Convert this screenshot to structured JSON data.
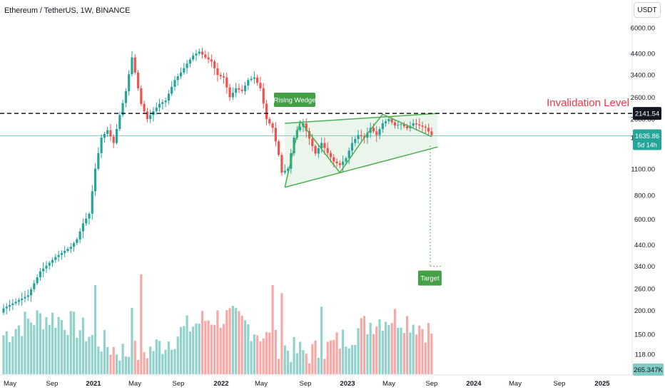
{
  "header": {
    "title": "Ethereum / TetherUS, 1W, BINANCE",
    "currency_button": "USDT"
  },
  "colors": {
    "up": "#26a69a",
    "down": "#ef5350",
    "wedge_line": "#4caf50",
    "wedge_fill": "#e8f5e9",
    "invalidation_text": "#f23645",
    "last_price_line": "#26a69a"
  },
  "chart_data": {
    "type": "candlestick",
    "title": "Ethereum / TetherUS, 1W, BINANCE",
    "y_scale": "log",
    "ylim": [
      105,
      8000
    ],
    "y_ticks": [
      118,
      150,
      200,
      260,
      340,
      440,
      600,
      800,
      1100,
      1600,
      2000,
      2600,
      3400,
      4400,
      6000
    ],
    "y_tick_labels": [
      "118.00",
      "150.00",
      "200.00",
      "260.00",
      "340.00",
      "440.00",
      "600.00",
      "800.00",
      "1100.00",
      "1600.00",
      "2000.00",
      "2600.00",
      "3400.00",
      "4400.00",
      "6000.00"
    ],
    "x_tick_labels": [
      "May",
      "Sep",
      "2021",
      "May",
      "Sep",
      "2022",
      "May",
      "Sep",
      "2023",
      "May",
      "Sep",
      "2024",
      "May",
      "Sep",
      "2025"
    ],
    "bold_x_tick_labels": [
      "2021",
      "2022",
      "2023",
      "2024",
      "2025"
    ],
    "price_anchors": [
      [
        0,
        205
      ],
      [
        8,
        240
      ],
      [
        12,
        320
      ],
      [
        17,
        380
      ],
      [
        22,
        430
      ],
      [
        24,
        470
      ],
      [
        26,
        570
      ],
      [
        28,
        640
      ],
      [
        30,
        1100
      ],
      [
        32,
        1600
      ],
      [
        34,
        1750
      ],
      [
        36,
        1500
      ],
      [
        38,
        2100
      ],
      [
        40,
        2800
      ],
      [
        42,
        4200
      ],
      [
        43,
        3500
      ],
      [
        45,
        2400
      ],
      [
        47,
        2000
      ],
      [
        49,
        2200
      ],
      [
        51,
        2400
      ],
      [
        53,
        2500
      ],
      [
        56,
        3200
      ],
      [
        58,
        3500
      ],
      [
        60,
        3900
      ],
      [
        62,
        4300
      ],
      [
        64,
        4500
      ],
      [
        66,
        4200
      ],
      [
        68,
        4000
      ],
      [
        70,
        3400
      ],
      [
        72,
        3300
      ],
      [
        74,
        2600
      ],
      [
        76,
        2900
      ],
      [
        78,
        2800
      ],
      [
        80,
        3200
      ],
      [
        82,
        3300
      ],
      [
        84,
        2900
      ],
      [
        86,
        2000
      ],
      [
        88,
        1800
      ],
      [
        90,
        1300
      ],
      [
        91,
        1050
      ],
      [
        93,
        1100
      ],
      [
        95,
        1600
      ],
      [
        96,
        1750
      ],
      [
        98,
        1900
      ],
      [
        100,
        1580
      ],
      [
        102,
        1320
      ],
      [
        104,
        1500
      ],
      [
        106,
        1330
      ],
      [
        108,
        1200
      ],
      [
        110,
        1150
      ],
      [
        112,
        1250
      ],
      [
        114,
        1500
      ],
      [
        116,
        1650
      ],
      [
        118,
        1600
      ],
      [
        120,
        1800
      ],
      [
        122,
        1650
      ],
      [
        124,
        1900
      ],
      [
        126,
        2000
      ],
      [
        128,
        1850
      ],
      [
        130,
        1880
      ],
      [
        132,
        1790
      ],
      [
        134,
        1900
      ],
      [
        136,
        1850
      ],
      [
        138,
        1800
      ],
      [
        140,
        1650
      ]
    ],
    "volume_bars": 141,
    "wedge_label": "Rising Wedge",
    "wedge_lines": {
      "upper": {
        "from": [
          92,
          1900
        ],
        "to": [
          142,
          2141.54
        ]
      },
      "lower": {
        "from": [
          92,
          880
        ],
        "to": [
          142,
          1430
        ]
      }
    },
    "zigzag": [
      [
        92,
        880
      ],
      [
        97,
        1950
      ],
      [
        105,
        1330
      ],
      [
        110,
        1050
      ],
      [
        118,
        1600
      ],
      [
        124,
        2120
      ],
      [
        140,
        1620
      ]
    ],
    "projection_target": 340,
    "target_label": "Target",
    "invalidation_level": 2141.54,
    "invalidation_label": "Invalidation Level",
    "last_price": 1635.86,
    "last_price_label": "1635.86",
    "countdown_label": "5d 14h",
    "invalidation_price_label": "2141.54",
    "volume_label": "265.347K"
  }
}
